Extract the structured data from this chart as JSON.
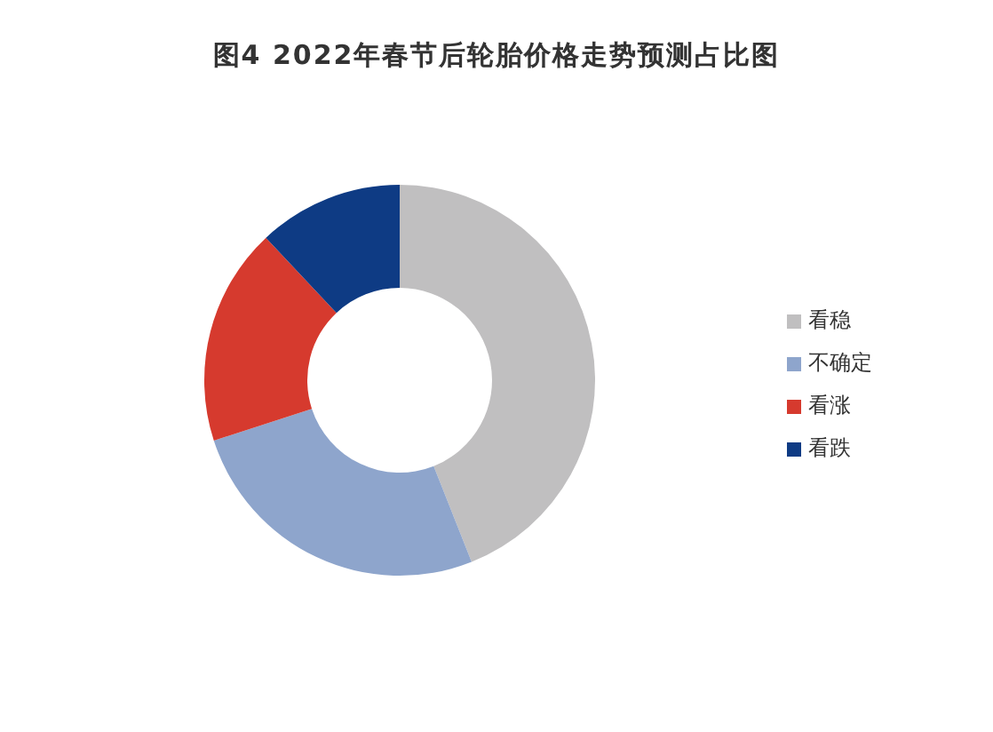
{
  "chart_data": {
    "type": "donut",
    "title": "图4 2022年春节后轮胎价格走势预测占比图",
    "categories": [
      "看稳",
      "不确定",
      "看涨",
      "看跌"
    ],
    "values": [
      44,
      26,
      18,
      12
    ],
    "colors": [
      "#c0bfc0",
      "#8ea5cc",
      "#d63a2e",
      "#0e3b84"
    ],
    "legend": "right"
  }
}
